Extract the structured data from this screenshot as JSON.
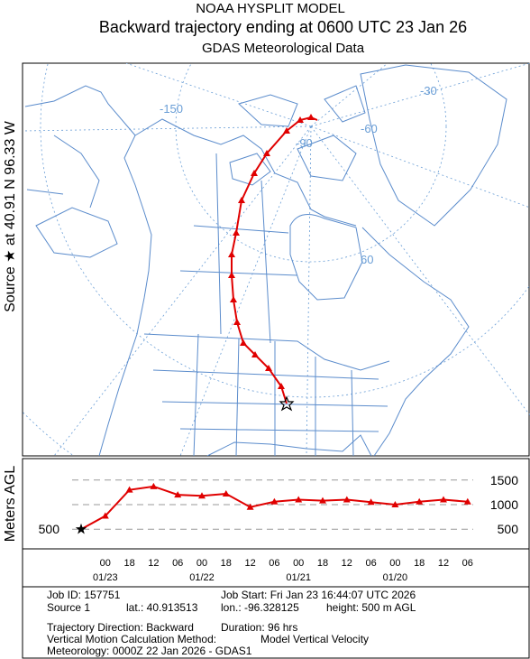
{
  "header": {
    "line1": "NOAA HYSPLIT MODEL",
    "title": "Backward trajectory ending at 0600 UTC 23 Jan 26",
    "subtitle": "GDAS Meteorological Data"
  },
  "map": {
    "source_label": "Source ★  at   40.91 N   96.33 W",
    "graticule_labels": [
      "-150",
      "-30",
      "-60",
      "-90",
      "60"
    ]
  },
  "chart_data": {
    "type": "line",
    "y_label": "Meters AGL",
    "categories": [
      null,
      "00",
      "18",
      "12",
      "06",
      "00",
      "18",
      "12",
      "06",
      "00",
      "18",
      "12",
      "06",
      "00",
      "18",
      "12",
      "06"
    ],
    "date_labels": [
      null,
      "01/23",
      null,
      null,
      null,
      "01/22",
      null,
      null,
      null,
      "01/21",
      null,
      null,
      null,
      "01/20",
      null,
      null,
      null
    ],
    "series": [
      {
        "color": "#e00000",
        "values": [
          500,
          770,
          1300,
          1370,
          1200,
          1180,
          1220,
          950,
          1060,
          1100,
          1080,
          1100,
          1050,
          1000,
          1060,
          1100,
          1060
        ],
        "value_labels": [
          "500",
          null,
          null,
          null,
          null,
          null,
          null,
          null,
          null,
          null,
          null,
          null,
          null,
          null,
          null,
          null,
          null
        ]
      }
    ],
    "ylim": [
      100,
      1900
    ],
    "yticks": [
      500,
      1000,
      1500
    ],
    "grid": true
  },
  "footer": {
    "job_id": "Job ID: 157751",
    "job_start": "Job Start: Fri Jan 23 16:44:07 UTC 2026",
    "source": "Source 1",
    "lat": "lat.: 40.913513",
    "lon": "lon.: -96.328125",
    "height": "height: 500 m AGL",
    "direction": "Trajectory Direction: Backward",
    "duration": "Duration: 96 hrs",
    "vmethod": "Vertical Motion Calculation Method:",
    "vmodel": "Model Vertical Velocity",
    "meteorology": "Meteorology: 0000Z 22 Jan 2026 - GDAS1"
  }
}
